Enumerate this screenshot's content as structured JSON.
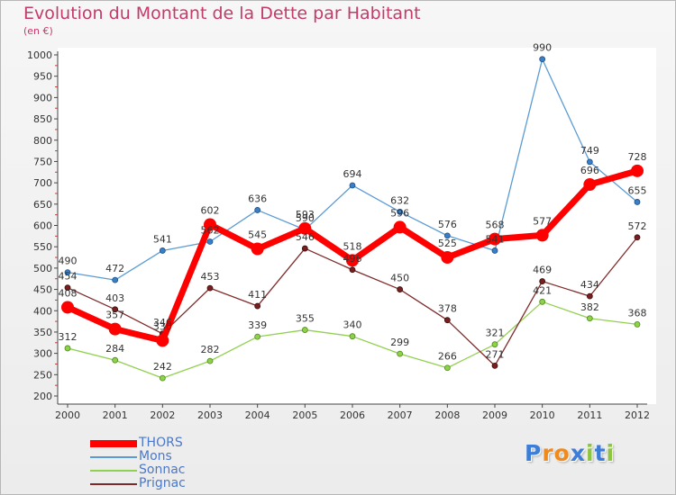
{
  "chart_data": {
    "type": "line",
    "title": "Evolution du Montant de la Dette par Habitant",
    "unit": "(en €)",
    "x": [
      "2000",
      "2001",
      "2002",
      "2003",
      "2004",
      "2005",
      "2006",
      "2007",
      "2008",
      "2009",
      "2010",
      "2011",
      "2012"
    ],
    "yticks": [
      200,
      250,
      300,
      350,
      400,
      450,
      500,
      550,
      600,
      650,
      700,
      750,
      800,
      850,
      900,
      950,
      1000
    ],
    "ylim": [
      200,
      1000
    ],
    "grid": false,
    "legend_position": "bottom-left",
    "series": [
      {
        "name": "THORS",
        "color": "#ff0000",
        "values": [
          408,
          357,
          330,
          602,
          545,
          593,
          518,
          596,
          525,
          568,
          577,
          696,
          728
        ],
        "labels": [
          "408",
          "357",
          "330",
          "602",
          "545",
          "593",
          "518",
          "596",
          "525",
          "568",
          "577",
          "696",
          "728"
        ]
      },
      {
        "name": "Mons",
        "color": "#5b9bd5",
        "values": [
          490,
          472,
          541,
          562,
          636,
          590,
          694,
          632,
          576,
          541,
          990,
          749,
          655
        ],
        "labels": [
          "490",
          "472",
          "541",
          "562",
          "636",
          "590",
          "694",
          "632",
          "576",
          "541",
          "990",
          "749",
          "655"
        ]
      },
      {
        "name": "Sonnac",
        "color": "#92d050",
        "values": [
          312,
          284,
          242,
          282,
          339,
          355,
          340,
          299,
          266,
          321,
          421,
          382,
          368
        ],
        "labels": [
          "312",
          "284",
          "242",
          "282",
          "339",
          "355",
          "340",
          "299",
          "266",
          "321",
          "421",
          "382",
          "368"
        ]
      },
      {
        "name": "Prignac",
        "color": "#7f2a2a",
        "values": [
          454,
          403,
          346,
          453,
          411,
          546,
          496,
          450,
          378,
          271,
          469,
          434,
          572
        ],
        "labels": [
          "454",
          "403",
          "346",
          "453",
          "411",
          "546",
          "496",
          "450",
          "378",
          "271",
          "469",
          "434",
          "572"
        ]
      }
    ]
  },
  "logo": {
    "letters": [
      "P",
      "r",
      "o",
      "x",
      "i",
      "t",
      "i"
    ],
    "colors": [
      "#3b7dd8",
      "#f08a1c",
      "#f08a1c",
      "#3b7dd8",
      "#8cc63e",
      "#3b7dd8",
      "#8cc63e"
    ]
  }
}
